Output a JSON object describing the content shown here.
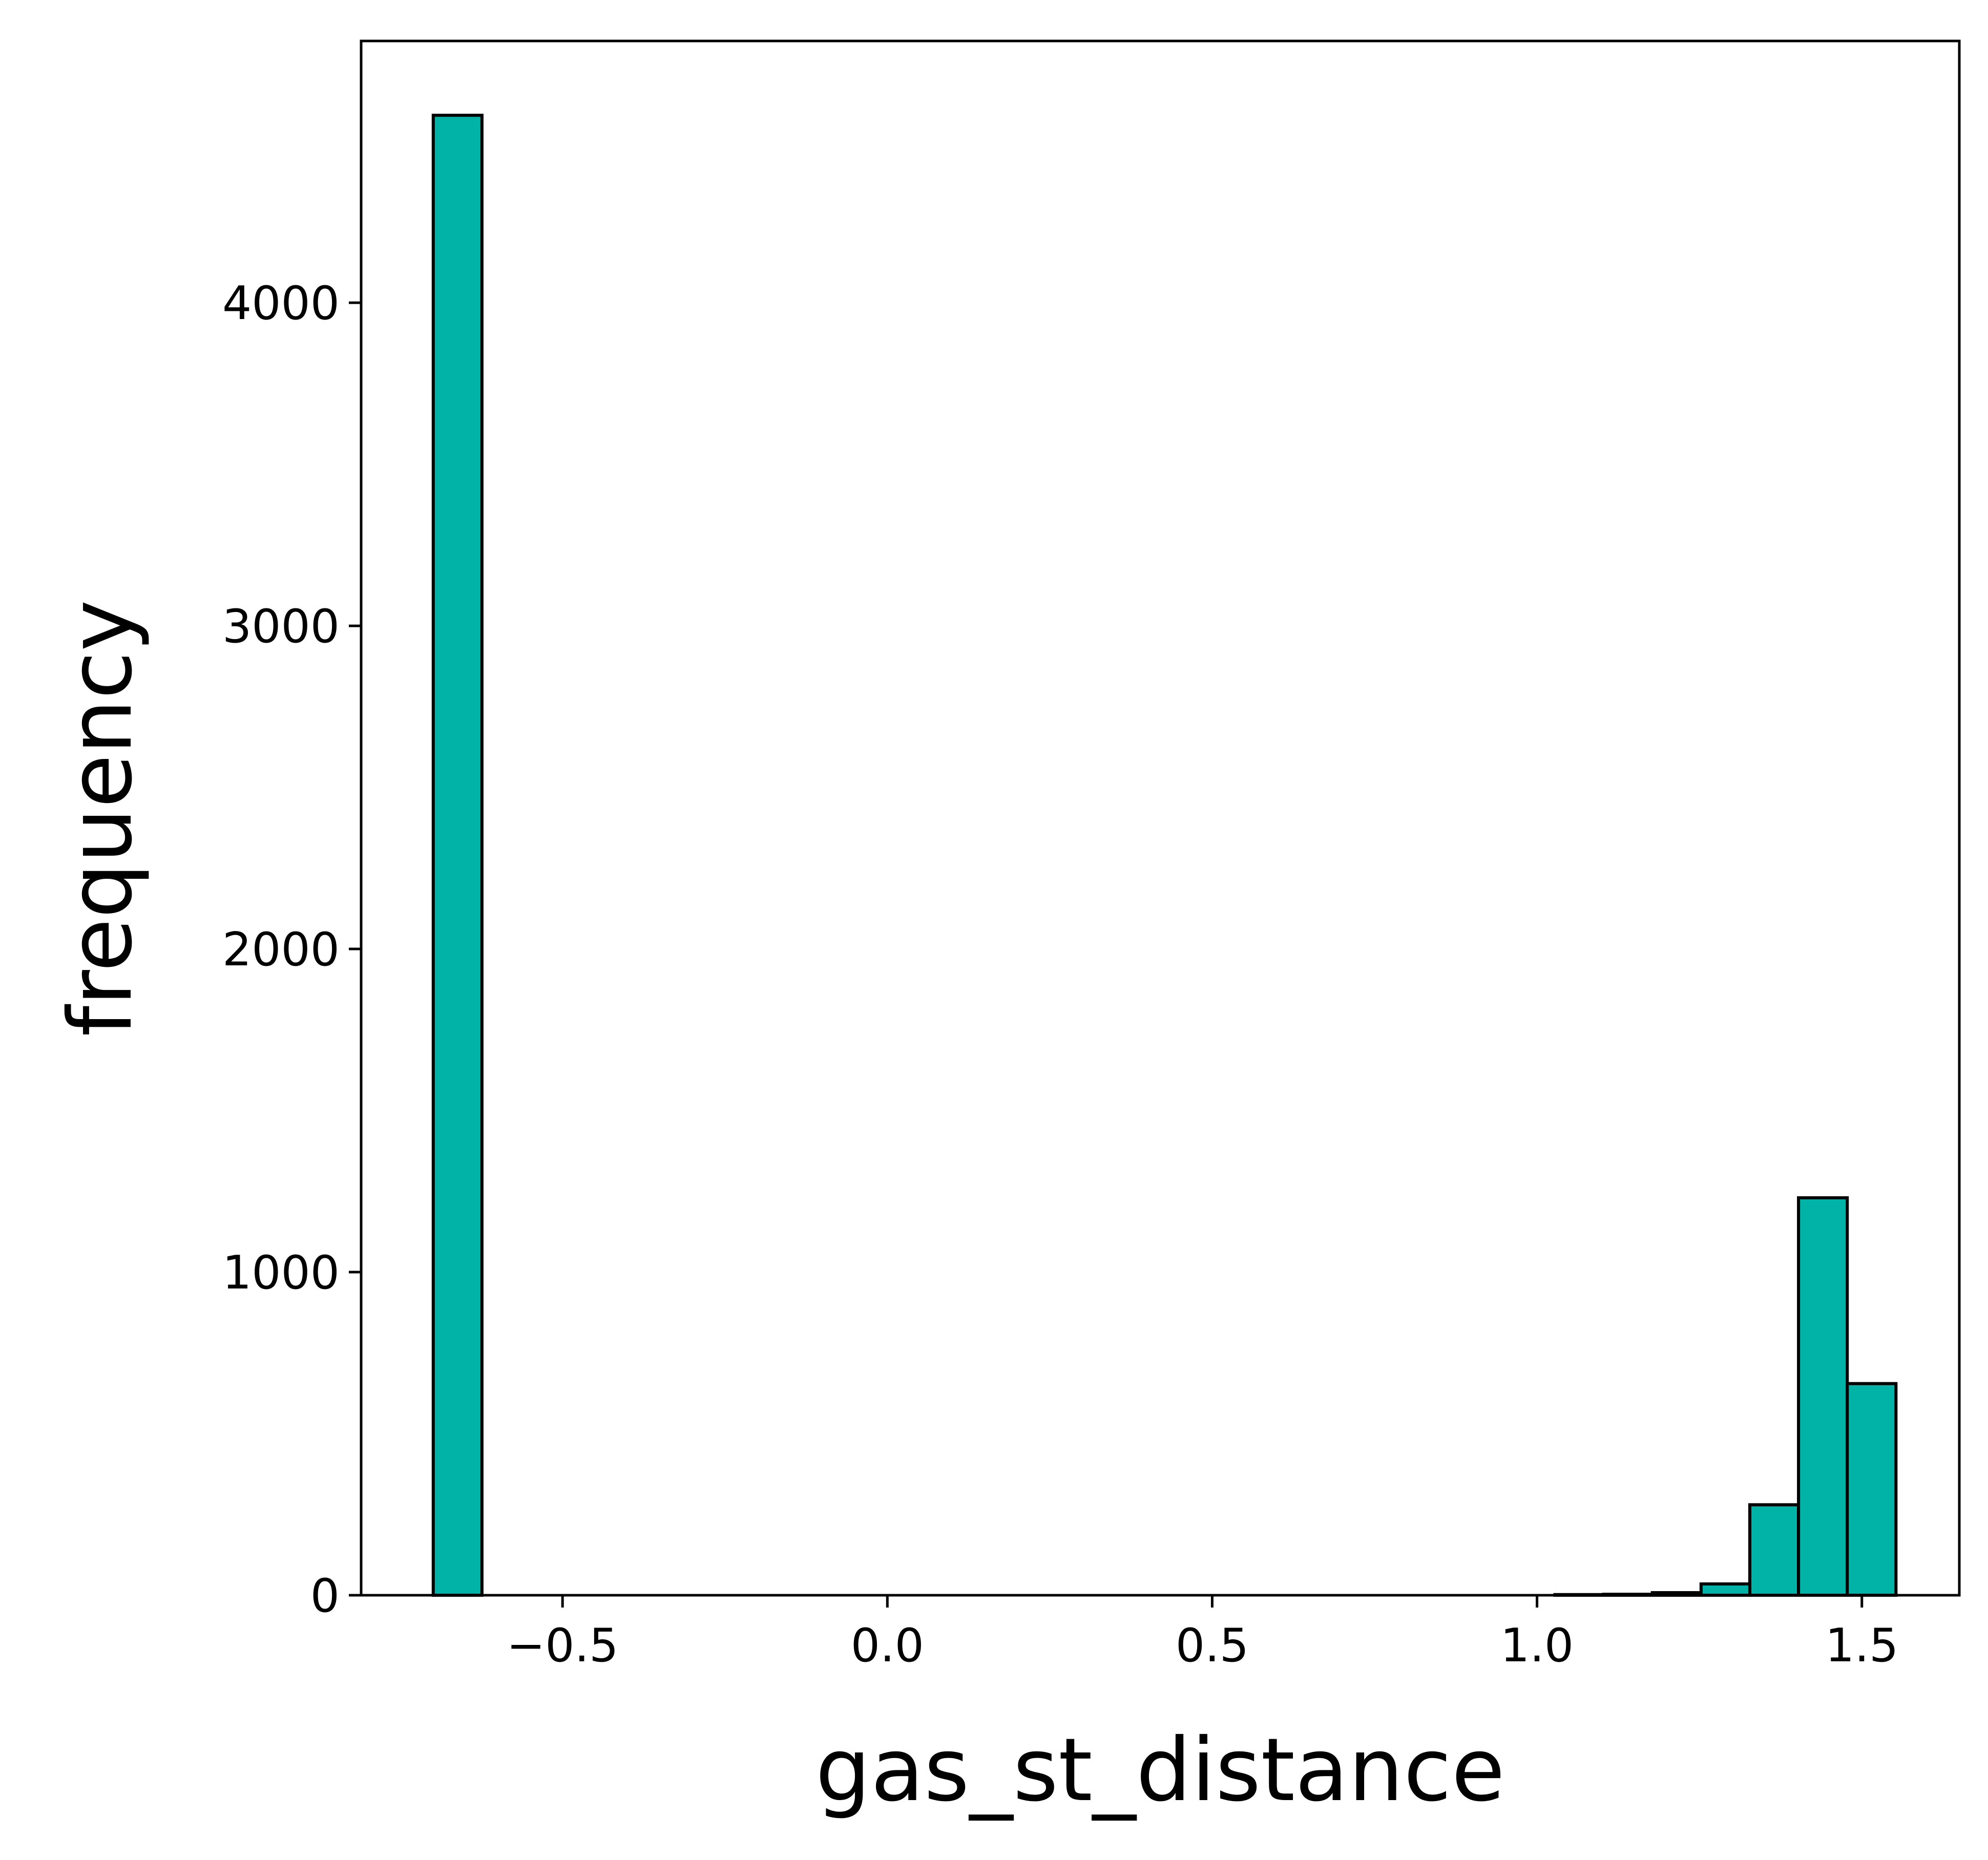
{
  "chart_data": {
    "type": "bar",
    "title": "",
    "xlabel": "gas_st_distance",
    "ylabel": "frequency",
    "xlim": [
      -0.81,
      1.65
    ],
    "ylim": [
      0,
      4810
    ],
    "xticks": [
      -0.5,
      0.0,
      0.5,
      1.0,
      1.5
    ],
    "xtick_labels": [
      "−0.5",
      "0.0",
      "0.5",
      "1.0",
      "1.5"
    ],
    "yticks": [
      0,
      1000,
      2000,
      3000,
      4000
    ],
    "ytick_labels": [
      "0",
      "1000",
      "2000",
      "3000",
      "4000"
    ],
    "bins": [
      {
        "x0": -0.699,
        "x1": -0.624,
        "count": 4580
      },
      {
        "x0": 1.0275,
        "x1": 1.1025,
        "count": 2
      },
      {
        "x0": 1.1025,
        "x1": 1.1775,
        "count": 3
      },
      {
        "x0": 1.1775,
        "x1": 1.2525,
        "count": 8
      },
      {
        "x0": 1.2525,
        "x1": 1.3275,
        "count": 35
      },
      {
        "x0": 1.3275,
        "x1": 1.4025,
        "count": 280
      },
      {
        "x0": 1.4025,
        "x1": 1.4775,
        "count": 1230
      },
      {
        "x0": 1.4775,
        "x1": 1.5525,
        "count": 655
      }
    ],
    "grid": false,
    "legend": "none",
    "colors": {
      "bar_fill": "#00b3a6",
      "bar_edge": "#000000",
      "axis": "#000000",
      "text": "#000000",
      "background": "#ffffff"
    }
  }
}
